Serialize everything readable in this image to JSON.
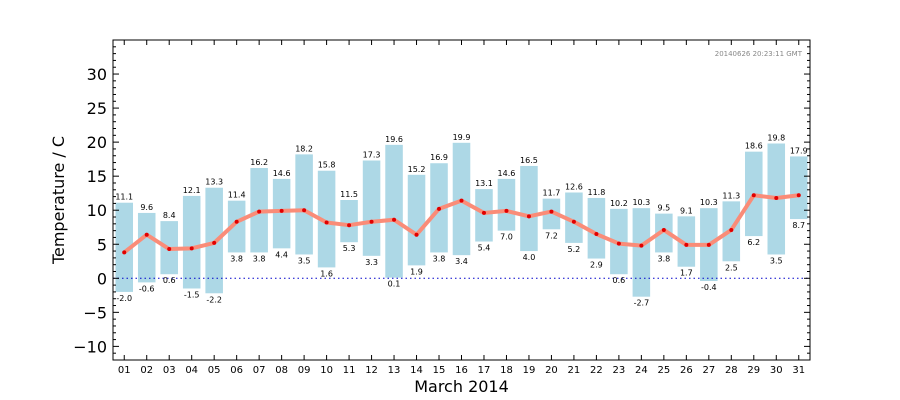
{
  "chart_data": {
    "type": "bar",
    "title": "",
    "timestamp": "20140626 20:23:11 GMT",
    "xlabel": "March 2014",
    "ylabel": "Temperature / C",
    "ylim": [
      -12,
      35
    ],
    "yticks": [
      -10,
      -5,
      0,
      5,
      10,
      15,
      20,
      25,
      30
    ],
    "ytick_labels": [
      "−10",
      "−5",
      "0",
      "5",
      "10",
      "15",
      "20",
      "25",
      "30"
    ],
    "grid": false,
    "zero_line": true,
    "categories": [
      "01",
      "02",
      "03",
      "04",
      "05",
      "06",
      "07",
      "08",
      "09",
      "10",
      "11",
      "12",
      "13",
      "14",
      "15",
      "16",
      "17",
      "18",
      "19",
      "20",
      "21",
      "22",
      "23",
      "24",
      "25",
      "26",
      "27",
      "28",
      "29",
      "30",
      "31"
    ],
    "series": [
      {
        "kind": "range-bar",
        "max": [
          11.1,
          9.6,
          8.4,
          12.1,
          13.3,
          11.4,
          16.2,
          14.6,
          18.2,
          15.8,
          11.5,
          17.3,
          19.6,
          15.2,
          16.9,
          19.9,
          13.1,
          14.6,
          16.5,
          11.7,
          12.6,
          11.8,
          10.2,
          10.3,
          9.5,
          9.1,
          10.3,
          11.3,
          18.6,
          19.8,
          17.9
        ],
        "min": [
          -2.0,
          -0.6,
          0.6,
          -1.5,
          -2.2,
          3.8,
          3.8,
          4.4,
          3.5,
          1.6,
          5.3,
          3.3,
          0.1,
          1.9,
          3.8,
          3.4,
          5.4,
          7.0,
          4.0,
          7.2,
          5.2,
          2.9,
          0.6,
          -2.7,
          3.8,
          1.7,
          -0.4,
          2.5,
          6.2,
          3.5,
          8.7
        ],
        "max_labels": [
          "11.1",
          "9.6",
          "8.4",
          "12.1",
          "13.3",
          "11.4",
          "16.2",
          "14.6",
          "18.2",
          "15.8",
          "11.5",
          "17.3",
          "19.6",
          "15.2",
          "16.9",
          "19.9",
          "13.1",
          "14.6",
          "16.5",
          "11.7",
          "12.6",
          "11.8",
          "10.2",
          "10.3",
          "9.5",
          "9.1",
          "10.3",
          "11.3",
          "18.6",
          "19.8",
          "17.9"
        ],
        "min_labels": [
          "-2.0",
          "-0.6",
          "0.6",
          "-1.5",
          "-2.2",
          "3.8",
          "3.8",
          "4.4",
          "3.5",
          "1.6",
          "5.3",
          "3.3",
          "0.1",
          "1.9",
          "3.8",
          "3.4",
          "5.4",
          "7.0",
          "4.0",
          "7.2",
          "5.2",
          "2.9",
          "0.6",
          "-2.7",
          "3.8",
          "1.7",
          "-0.4",
          "2.5",
          "6.2",
          "3.5",
          "8.7"
        ]
      },
      {
        "kind": "line",
        "values": [
          3.8,
          6.4,
          4.3,
          4.4,
          5.2,
          8.3,
          9.8,
          9.9,
          10.0,
          8.2,
          7.8,
          8.3,
          8.6,
          6.4,
          10.2,
          11.4,
          9.6,
          9.9,
          9.1,
          9.8,
          8.3,
          6.5,
          5.1,
          4.8,
          7.1,
          4.9,
          4.9,
          7.1,
          12.2,
          11.8,
          12.2
        ]
      }
    ],
    "colors": {
      "bar": "#add8e6",
      "line": "#fa8c78",
      "marker": "#e00000",
      "zero_line": "#0000cc",
      "axis": "#000000"
    }
  }
}
